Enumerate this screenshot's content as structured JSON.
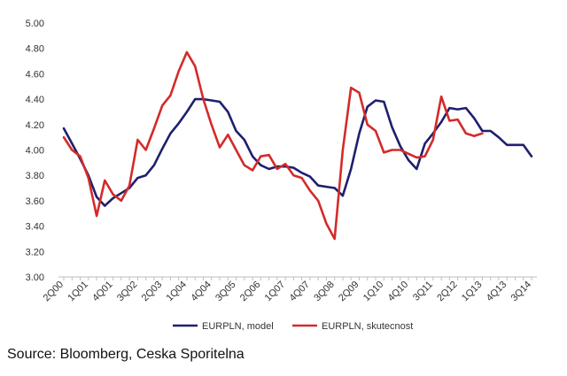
{
  "chart_data": {
    "type": "line",
    "ylim": [
      3.0,
      5.0
    ],
    "yticks": [
      "5.00",
      "4.80",
      "4.60",
      "4.40",
      "4.20",
      "4.00",
      "3.80",
      "3.60",
      "3.40",
      "3.20",
      "3.00"
    ],
    "x_tick_labels": [
      "2Q00",
      "1Q01",
      "4Q01",
      "3Q02",
      "2Q03",
      "1Q04",
      "4Q04",
      "3Q05",
      "2Q06",
      "1Q07",
      "4Q07",
      "3Q08",
      "2Q09",
      "1Q10",
      "4Q10",
      "3Q11",
      "2Q12",
      "1Q13",
      "4Q13",
      "3Q14"
    ],
    "x_periods": [
      "2Q00",
      "3Q00",
      "4Q00",
      "1Q01",
      "2Q01",
      "3Q01",
      "4Q01",
      "1Q02",
      "2Q02",
      "3Q02",
      "4Q02",
      "1Q03",
      "2Q03",
      "3Q03",
      "4Q03",
      "1Q04",
      "2Q04",
      "3Q04",
      "4Q04",
      "1Q05",
      "2Q05",
      "3Q05",
      "4Q05",
      "1Q06",
      "2Q06",
      "3Q06",
      "4Q06",
      "1Q07",
      "2Q07",
      "3Q07",
      "4Q07",
      "1Q08",
      "2Q08",
      "3Q08",
      "4Q08",
      "1Q09",
      "2Q09",
      "3Q09",
      "4Q09",
      "1Q10",
      "2Q10",
      "3Q10",
      "4Q10",
      "1Q11",
      "2Q11",
      "3Q11",
      "4Q11",
      "1Q12",
      "2Q12",
      "3Q12",
      "4Q12",
      "1Q13",
      "2Q13",
      "3Q13",
      "4Q13",
      "1Q14",
      "2Q14",
      "3Q14"
    ],
    "grid": false,
    "legend_position": "bottom",
    "series": [
      {
        "name": "EURPLN, model",
        "color": "#1f1f6e",
        "values": [
          4.17,
          4.05,
          3.93,
          3.8,
          3.63,
          3.56,
          3.62,
          3.66,
          3.7,
          3.78,
          3.8,
          3.88,
          4.01,
          4.13,
          4.21,
          4.3,
          4.4,
          4.4,
          4.39,
          4.38,
          4.3,
          4.15,
          4.08,
          3.95,
          3.88,
          3.85,
          3.87,
          3.87,
          3.86,
          3.82,
          3.79,
          3.72,
          3.71,
          3.7,
          3.64,
          3.85,
          4.13,
          4.34,
          4.39,
          4.38,
          4.18,
          4.03,
          3.92,
          3.85,
          4.05,
          4.13,
          4.22,
          4.33,
          4.32,
          4.33,
          4.25,
          4.15,
          4.15,
          4.1,
          4.04,
          4.04,
          4.04,
          3.95
        ]
      },
      {
        "name": "EURPLN, skutecnost",
        "color": "#d42a2a",
        "values": [
          4.1,
          4.0,
          3.95,
          3.78,
          3.48,
          3.76,
          3.65,
          3.6,
          3.72,
          4.08,
          4.0,
          4.17,
          4.35,
          4.43,
          4.62,
          4.77,
          4.66,
          4.4,
          4.2,
          4.02,
          4.12,
          4.0,
          3.88,
          3.84,
          3.95,
          3.96,
          3.85,
          3.89,
          3.8,
          3.78,
          3.68,
          3.6,
          3.42,
          3.3,
          4.0,
          4.49,
          4.45,
          4.2,
          4.15,
          3.98,
          4.0,
          4.0,
          3.97,
          3.94,
          3.95,
          4.08,
          4.42,
          4.23,
          4.24,
          4.13,
          4.11,
          4.13
        ]
      }
    ]
  },
  "footer": {
    "source": "Source: Bloomberg, Ceska Sporitelna"
  }
}
